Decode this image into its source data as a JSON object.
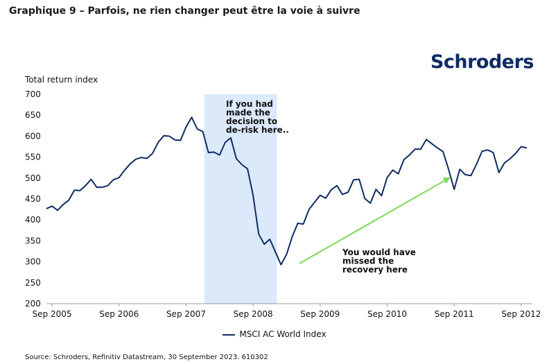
{
  "heading": "Graphique 9 – Parfois, ne rien changer peut être la voie à suivre",
  "logo": "Schroders",
  "source": "Source: Schroders, Refinitiv Datastream, 30 September 2023. 610302",
  "colors": {
    "line": "#0e2b63",
    "highlight": "#dbe9fb",
    "arrow": "#7ed957",
    "logo": "#0e2b63"
  },
  "chart_data": {
    "type": "line",
    "title": "",
    "xlabel": "",
    "ylabel": "Total return index",
    "ylim": [
      200,
      700
    ],
    "yticks": [
      200,
      250,
      300,
      350,
      400,
      450,
      500,
      550,
      600,
      650,
      700
    ],
    "xlim": [
      "2005-08",
      "2012-11"
    ],
    "xticks": [
      "Sep 2005",
      "Sep 2006",
      "Sep 2007",
      "Sep 2008",
      "Sep 2009",
      "Sep 2010",
      "Sep 2011",
      "Sep 2012"
    ],
    "grid": false,
    "legend": "bottom",
    "series": [
      {
        "name": "MSCI AC World Index",
        "color": "#0e2b63",
        "x": [
          "2005-08",
          "2005-09",
          "2005-10",
          "2005-11",
          "2005-12",
          "2006-01",
          "2006-02",
          "2006-03",
          "2006-04",
          "2006-05",
          "2006-06",
          "2006-07",
          "2006-08",
          "2006-09",
          "2006-10",
          "2006-11",
          "2006-12",
          "2007-01",
          "2007-02",
          "2007-03",
          "2007-04",
          "2007-05",
          "2007-06",
          "2007-07",
          "2007-08",
          "2007-09",
          "2007-10",
          "2007-11",
          "2007-12",
          "2008-01",
          "2008-02",
          "2008-03",
          "2008-04",
          "2008-05",
          "2008-06",
          "2008-07",
          "2008-08",
          "2008-09",
          "2008-10",
          "2008-11",
          "2008-12",
          "2009-01",
          "2009-02",
          "2009-03",
          "2009-04",
          "2009-05",
          "2009-06",
          "2009-07",
          "2009-08",
          "2009-09",
          "2009-10",
          "2009-11",
          "2009-12",
          "2010-01",
          "2010-02",
          "2010-03",
          "2010-04",
          "2010-05",
          "2010-06",
          "2010-07",
          "2010-08",
          "2010-09",
          "2010-10",
          "2010-11",
          "2010-12",
          "2011-01",
          "2011-02",
          "2011-03",
          "2011-04",
          "2011-05",
          "2011-06",
          "2011-07",
          "2011-08",
          "2011-09",
          "2011-10",
          "2011-11",
          "2011-12",
          "2012-01",
          "2012-02",
          "2012-03",
          "2012-04",
          "2012-05",
          "2012-06",
          "2012-07",
          "2012-08",
          "2012-09",
          "2012-10"
        ],
        "values": [
          427,
          433,
          423,
          437,
          447,
          471,
          470,
          482,
          497,
          478,
          478,
          482,
          496,
          501,
          519,
          534,
          545,
          549,
          547,
          559,
          585,
          601,
          600,
          591,
          590,
          622,
          645,
          617,
          611,
          561,
          562,
          555,
          585,
          596,
          546,
          532,
          522,
          459,
          366,
          342,
          354,
          323,
          293,
          318,
          360,
          392,
          390,
          425,
          442,
          459,
          452,
          472,
          482,
          461,
          466,
          496,
          497,
          451,
          440,
          473,
          458,
          501,
          519,
          510,
          544,
          555,
          569,
          569,
          592,
          582,
          572,
          563,
          521,
          473,
          521,
          508,
          506,
          533,
          564,
          567,
          561,
          513,
          536,
          546,
          559,
          575,
          572
        ]
      }
    ],
    "annotations": [
      {
        "id": "derisk",
        "text": [
          "If you had",
          "made the",
          "decision to",
          "de-risk here.."
        ]
      },
      {
        "id": "recovery",
        "text": [
          "You would have",
          "missed the",
          "recovery here"
        ]
      }
    ]
  }
}
